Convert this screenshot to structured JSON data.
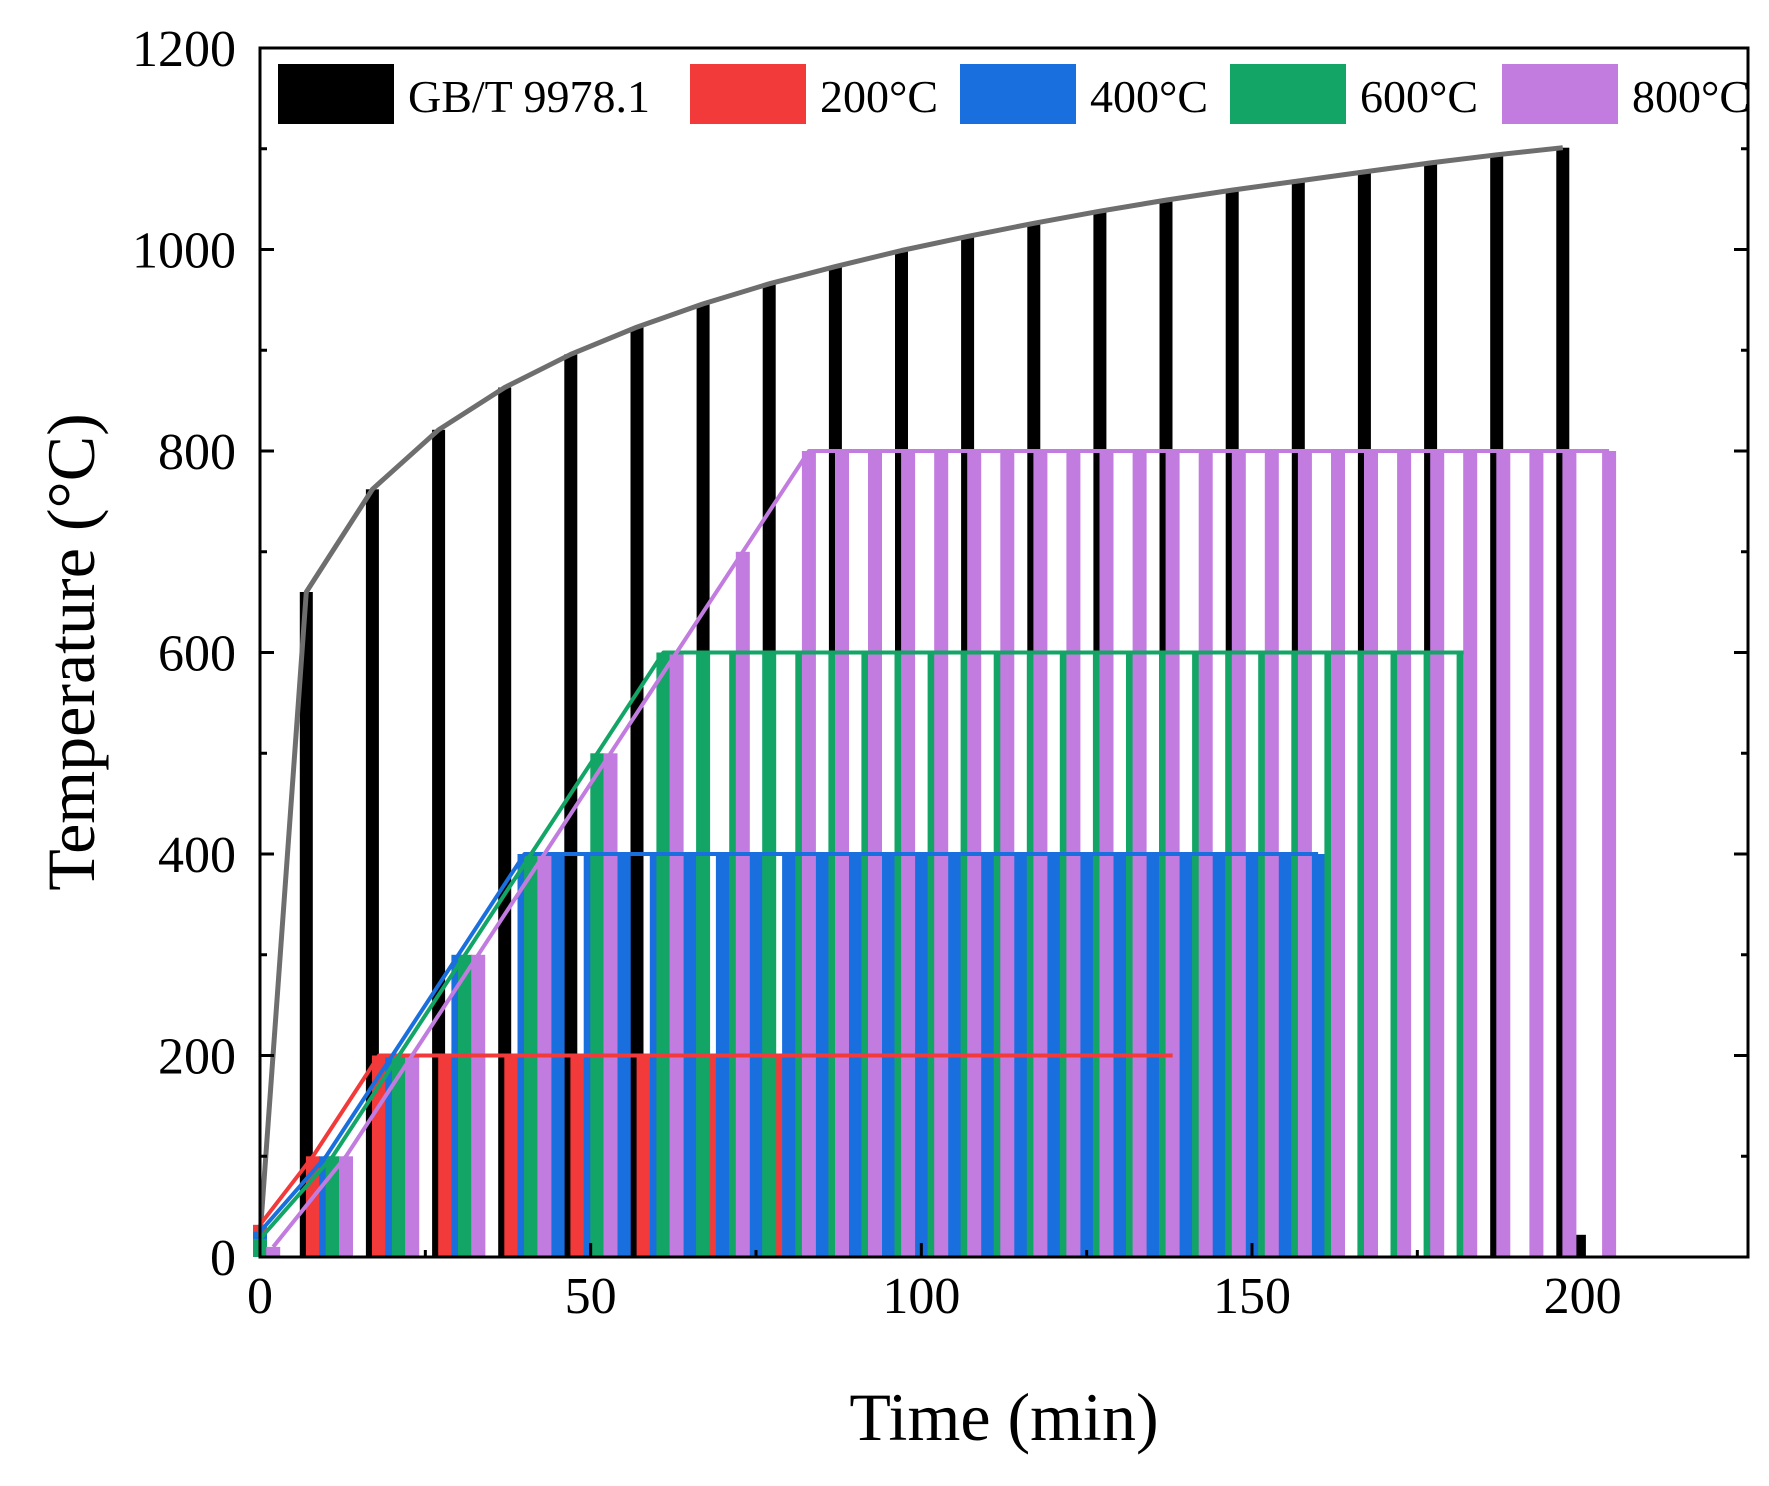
{
  "chart_data": {
    "type": "bar+line",
    "title": "",
    "xlabel": "Time (min)",
    "ylabel": "Temperature (°C)",
    "xlim": [
      0,
      225
    ],
    "ylim": [
      0,
      1200
    ],
    "xticks": [
      0,
      50,
      100,
      150,
      200
    ],
    "yticks": [
      0,
      200,
      400,
      600,
      800,
      1000,
      1200
    ],
    "grid": false,
    "legend_position": "top",
    "series": [
      {
        "name": "GB/T 9978.1",
        "kind": "iso834",
        "color": "#000000",
        "line_color": "#6e6e6e",
        "x": [
          0,
          7,
          17,
          27,
          37,
          47,
          57,
          67,
          77,
          87,
          97,
          107,
          117,
          127,
          137,
          147,
          157,
          167,
          177,
          187,
          197
        ],
        "values": [
          20,
          660,
          762,
          821,
          863,
          896,
          923,
          946,
          966,
          983,
          999,
          1013,
          1026,
          1038,
          1049,
          1059,
          1068,
          1077,
          1086,
          1094,
          1101
        ],
        "extra_bars": [
          {
            "x": 199.5,
            "value": 22
          }
        ]
      },
      {
        "name": "200°C",
        "kind": "ramp",
        "color": "#f23a3a",
        "x": [
          0,
          8,
          18,
          23,
          28,
          33,
          38,
          43,
          48,
          53,
          58,
          63,
          68,
          73,
          78,
          83,
          88,
          93,
          98,
          103,
          108,
          113,
          118,
          123,
          128,
          133,
          138
        ],
        "values": [
          32,
          100,
          200,
          200,
          200,
          200,
          200,
          200,
          200,
          200,
          200,
          200,
          200,
          200,
          200,
          200,
          200,
          200,
          200,
          200,
          200,
          200,
          200,
          200,
          200,
          200,
          200
        ]
      },
      {
        "name": "400°C",
        "kind": "ramp",
        "color": "#1a6fdf",
        "x": [
          0,
          10,
          20,
          30,
          40,
          45,
          50,
          55,
          60,
          65,
          70,
          75,
          80,
          85,
          90,
          95,
          100,
          105,
          110,
          115,
          120,
          125,
          130,
          135,
          140,
          145,
          150,
          155,
          160
        ],
        "values": [
          25,
          100,
          200,
          300,
          400,
          400,
          400,
          400,
          400,
          400,
          400,
          400,
          400,
          400,
          400,
          400,
          400,
          400,
          400,
          400,
          400,
          400,
          400,
          400,
          400,
          400,
          400,
          400,
          400
        ]
      },
      {
        "name": "600°C",
        "kind": "ramp",
        "color": "#13a565",
        "x": [
          0,
          11,
          21,
          31,
          41,
          51,
          61,
          67,
          72,
          77,
          82,
          87,
          92,
          97,
          102,
          107,
          112,
          117,
          122,
          127,
          132,
          137,
          142,
          147,
          152,
          157,
          162,
          167,
          172,
          177,
          182
        ],
        "values": [
          18,
          100,
          200,
          300,
          400,
          500,
          600,
          600,
          600,
          600,
          600,
          600,
          600,
          600,
          600,
          600,
          600,
          600,
          600,
          600,
          600,
          600,
          600,
          600,
          600,
          600,
          600,
          600,
          600,
          600,
          600
        ]
      },
      {
        "name": "800°C",
        "kind": "ramp",
        "color": "#c27bdf",
        "x": [
          2,
          13,
          23,
          33,
          43,
          53,
          63,
          73,
          83,
          88,
          93,
          98,
          103,
          108,
          113,
          118,
          123,
          128,
          133,
          138,
          143,
          148,
          153,
          158,
          163,
          168,
          173,
          178,
          183,
          188,
          193,
          198,
          204
        ],
        "values": [
          10,
          100,
          200,
          300,
          400,
          500,
          600,
          700,
          800,
          800,
          800,
          800,
          800,
          800,
          800,
          800,
          800,
          800,
          800,
          800,
          800,
          800,
          800,
          800,
          800,
          800,
          800,
          800,
          800,
          800,
          800,
          800,
          800
        ]
      }
    ]
  }
}
